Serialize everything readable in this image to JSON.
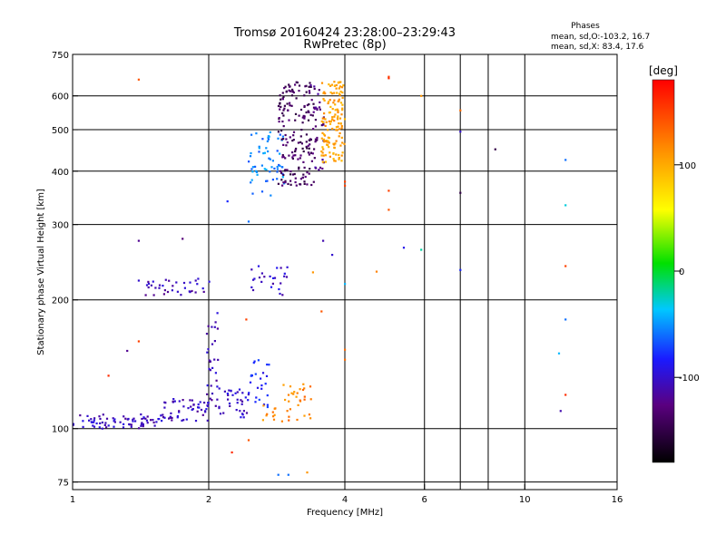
{
  "chart_data": {
    "type": "scatter",
    "title": "Tromsø 20160424 23:28:00–23:29:43",
    "subtitle": "RwPretec (8p)",
    "xlabel": "Frequency [MHz]",
    "ylabel": "Stationary phase Virtual Height [km]",
    "xscale": "log",
    "yscale": "log",
    "xlim": [
      1,
      16
    ],
    "ylim": [
      72,
      750
    ],
    "x_ticks": [
      1,
      2,
      4,
      6,
      10,
      16
    ],
    "x_tick_labels": [
      "1",
      "2",
      "4",
      "6",
      "10",
      "16"
    ],
    "x_gridlines": [
      2,
      4,
      6,
      7.2,
      8.3,
      10
    ],
    "y_ticks": [
      75,
      100,
      200,
      300,
      400,
      500,
      600,
      750
    ],
    "y_tick_labels": [
      "75",
      "100",
      "200",
      "300",
      "400",
      "500",
      "600",
      "750"
    ],
    "grid": true,
    "colorbar": {
      "title": "[deg]",
      "range": [
        -180,
        180
      ],
      "ticks": [
        100,
        0,
        -100
      ],
      "tick_labels": [
        "100",
        "0",
        "-100"
      ]
    },
    "stats": {
      "heading": "Phases",
      "line1": "mean, sd,O:-103.2, 16.7",
      "line2": "mean, sd,X:  83.4, 17.6"
    },
    "clusters": [
      {
        "x": [
          1.0,
          1.55
        ],
        "y": [
          100,
          108
        ],
        "phase": -105,
        "n": 70,
        "note": "low E trace"
      },
      {
        "x": [
          1.55,
          2.0
        ],
        "y": [
          104,
          118
        ],
        "phase": -105,
        "n": 55
      },
      {
        "x": [
          1.98,
          2.1
        ],
        "y": [
          112,
          190
        ],
        "phase": -108,
        "n": 30
      },
      {
        "x": [
          2.1,
          2.45
        ],
        "y": [
          106,
          125
        ],
        "phase": -100,
        "n": 35
      },
      {
        "x": [
          2.45,
          2.72
        ],
        "y": [
          112,
          145
        ],
        "phase": -85,
        "n": 25
      },
      {
        "x": [
          2.62,
          2.82
        ],
        "y": [
          104,
          114
        ],
        "phase": 115,
        "n": 10
      },
      {
        "x": [
          2.9,
          3.4
        ],
        "y": [
          104,
          130
        ],
        "phase": 120,
        "n": 30
      },
      {
        "x": [
          1.45,
          2.05
        ],
        "y": [
          205,
          225
        ],
        "phase": -108,
        "n": 35
      },
      {
        "x": [
          2.45,
          3.0
        ],
        "y": [
          205,
          240
        ],
        "phase": -100,
        "n": 25
      },
      {
        "x": [
          2.45,
          2.95
        ],
        "y": [
          350,
          500
        ],
        "phase": -55,
        "n": 60
      },
      {
        "x": [
          2.85,
          3.45
        ],
        "y": [
          370,
          650
        ],
        "phase": -140,
        "n": 180
      },
      {
        "x": [
          3.35,
          3.6
        ],
        "y": [
          400,
          640
        ],
        "phase": -125,
        "n": 30
      },
      {
        "x": [
          3.55,
          4.0
        ],
        "y": [
          420,
          650
        ],
        "phase": 105,
        "n": 140
      }
    ],
    "isolated_points": [
      {
        "x": 1.4,
        "y": 655,
        "phase": 140
      },
      {
        "x": 5.0,
        "y": 665,
        "phase": 150
      },
      {
        "x": 5.0,
        "y": 660,
        "phase": 160
      },
      {
        "x": 5.9,
        "y": 600,
        "phase": 110
      },
      {
        "x": 7.2,
        "y": 555,
        "phase": 130
      },
      {
        "x": 7.2,
        "y": 495,
        "phase": -100
      },
      {
        "x": 8.6,
        "y": 450,
        "phase": -150
      },
      {
        "x": 12.3,
        "y": 425,
        "phase": -60
      },
      {
        "x": 12.3,
        "y": 333,
        "phase": -30
      },
      {
        "x": 12.3,
        "y": 240,
        "phase": 150
      },
      {
        "x": 12.3,
        "y": 180,
        "phase": -60
      },
      {
        "x": 12.3,
        "y": 120,
        "phase": 160
      },
      {
        "x": 12.0,
        "y": 110,
        "phase": -110
      },
      {
        "x": 11.9,
        "y": 150,
        "phase": -40
      },
      {
        "x": 5.0,
        "y": 360,
        "phase": 150
      },
      {
        "x": 5.0,
        "y": 325,
        "phase": 140
      },
      {
        "x": 4.0,
        "y": 378,
        "phase": 150
      },
      {
        "x": 4.0,
        "y": 370,
        "phase": 150
      },
      {
        "x": 7.2,
        "y": 356,
        "phase": -150
      },
      {
        "x": 5.4,
        "y": 265,
        "phase": -90
      },
      {
        "x": 5.9,
        "y": 262,
        "phase": -20
      },
      {
        "x": 7.2,
        "y": 235,
        "phase": -80
      },
      {
        "x": 4.7,
        "y": 233,
        "phase": 120
      },
      {
        "x": 4.0,
        "y": 218,
        "phase": -40
      },
      {
        "x": 3.58,
        "y": 275,
        "phase": -110
      },
      {
        "x": 3.75,
        "y": 255,
        "phase": -100
      },
      {
        "x": 3.4,
        "y": 232,
        "phase": 110
      },
      {
        "x": 1.4,
        "y": 275,
        "phase": -120
      },
      {
        "x": 1.75,
        "y": 278,
        "phase": -130
      },
      {
        "x": 1.4,
        "y": 222,
        "phase": -100
      },
      {
        "x": 2.2,
        "y": 340,
        "phase": -80
      },
      {
        "x": 2.45,
        "y": 305,
        "phase": -60
      },
      {
        "x": 2.42,
        "y": 180,
        "phase": 150
      },
      {
        "x": 3.55,
        "y": 188,
        "phase": 140
      },
      {
        "x": 1.4,
        "y": 160,
        "phase": 150
      },
      {
        "x": 1.32,
        "y": 152,
        "phase": -120
      },
      {
        "x": 1.2,
        "y": 133,
        "phase": 160
      },
      {
        "x": 4.0,
        "y": 153,
        "phase": 130
      },
      {
        "x": 4.0,
        "y": 145,
        "phase": 130
      },
      {
        "x": 2.25,
        "y": 88,
        "phase": 160
      },
      {
        "x": 2.45,
        "y": 94,
        "phase": 140
      },
      {
        "x": 2.85,
        "y": 78,
        "phase": -60
      },
      {
        "x": 3.0,
        "y": 78,
        "phase": -60
      },
      {
        "x": 3.3,
        "y": 79,
        "phase": 110
      }
    ]
  }
}
